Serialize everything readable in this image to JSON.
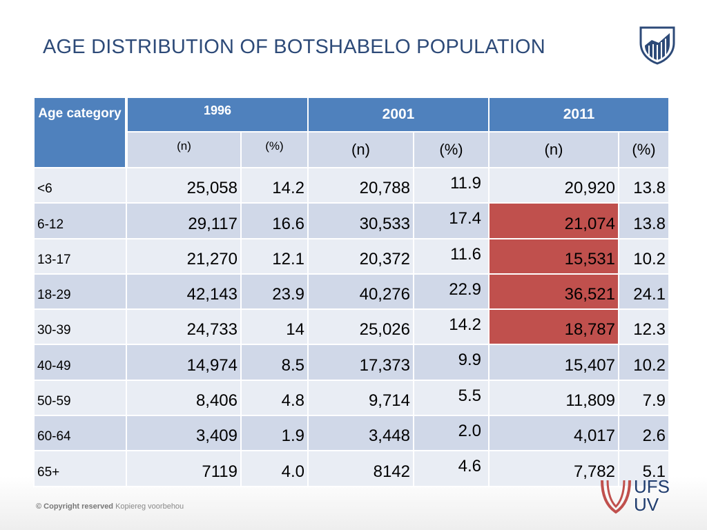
{
  "header": {
    "title": "AGE DISTRIBUTION OF BOTSHABELO POPULATION"
  },
  "table": {
    "corner": "Age category",
    "years": [
      "1996",
      "2001",
      "2011"
    ],
    "subheaders": [
      "(n)",
      "(%)",
      "(n)",
      "(%)",
      "(n)",
      "(%)"
    ],
    "rows": [
      [
        "<6",
        "25,058",
        "14.2",
        "20,788",
        "11.9",
        "20,920",
        "13.8"
      ],
      [
        "6-12",
        "29,117",
        "16.6",
        "30,533",
        "17.4",
        "21,074",
        "13.8"
      ],
      [
        "13-17",
        "21,270",
        "12.1",
        "20,372",
        "11.6",
        "15,531",
        "10.2"
      ],
      [
        "18-29",
        "42,143",
        "23.9",
        "40,276",
        "22.9",
        "36,521",
        "24.1"
      ],
      [
        "30-39",
        "24,733",
        "14",
        "25,026",
        "14.2",
        "18,787",
        "12.3"
      ],
      [
        "40-49",
        "14,974",
        "8.5",
        "17,373",
        "9.9",
        "15,407",
        "10.2"
      ],
      [
        "50-59",
        "8,406",
        "4.8",
        "9,714",
        "5.5",
        "11,809",
        "7.9"
      ],
      [
        "60-64",
        "3,409",
        "1.9",
        "3,448",
        "2.0",
        "4,017",
        "2.6"
      ],
      [
        "65+",
        "7119",
        "4.0",
        "8142",
        "4.6",
        "7,782",
        "5.1"
      ]
    ]
  },
  "footer": {
    "bold": "© Copyright reserved",
    "text": "Kopiereg voorbehou"
  },
  "logo": {
    "line1": "UFS",
    "line2": "UV"
  }
}
